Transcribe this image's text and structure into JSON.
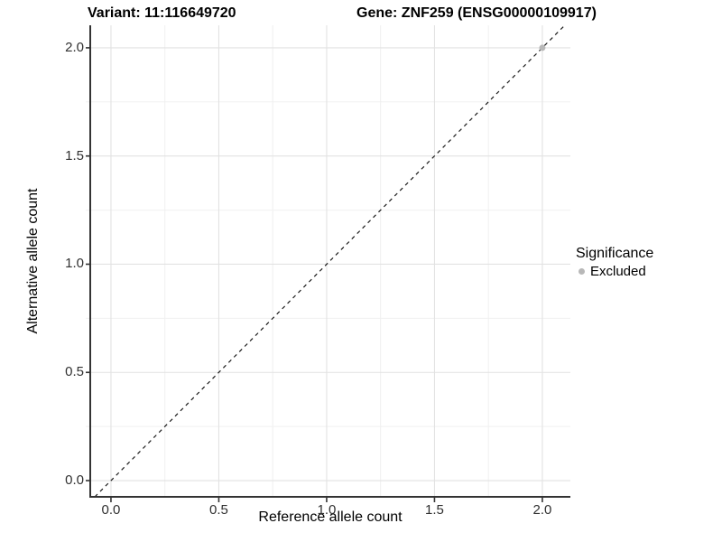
{
  "titles": {
    "variant": "Variant: 11:116649720",
    "gene": "Gene: ZNF259 (ENSG00000109917)"
  },
  "chart_data": {
    "type": "scatter",
    "title_left": "Variant: 11:116649720",
    "title_right": "Gene: ZNF259 (ENSG00000109917)",
    "xlabel": "Reference allele count",
    "ylabel": "Alternative allele count",
    "xlim": [
      -0.096,
      2.13
    ],
    "ylim": [
      -0.075,
      2.104
    ],
    "x_ticks": [
      0.0,
      0.5,
      1.0,
      1.5,
      2.0
    ],
    "y_ticks": [
      0.0,
      0.5,
      1.0,
      1.5,
      2.0
    ],
    "x_tick_labels": [
      "0.0",
      "0.5",
      "1.0",
      "1.5",
      "2.0"
    ],
    "y_tick_labels": [
      "0.0",
      "0.5",
      "1.0",
      "1.5",
      "2.0"
    ],
    "minor_grid_step": 0.25,
    "grid": true,
    "reference_line": {
      "slope": 1,
      "intercept": 0,
      "style": "dashed",
      "color": "#1a1a1a"
    },
    "series": [
      {
        "name": "Excluded",
        "color": "#b8b8b8",
        "points": [
          [
            2.0,
            2.0
          ]
        ]
      }
    ],
    "legend": {
      "title": "Significance",
      "position": "right",
      "entries": [
        {
          "label": "Excluded",
          "color": "#b8b8b8"
        }
      ]
    }
  },
  "colors": {
    "background": "#ffffff",
    "grid_major": "#e2e2e2",
    "grid_minor": "#f0f0f0",
    "axis_line": "#333333",
    "tick_mark": "#333333",
    "tick_text": "#303030",
    "point": "#b8b8b8"
  }
}
